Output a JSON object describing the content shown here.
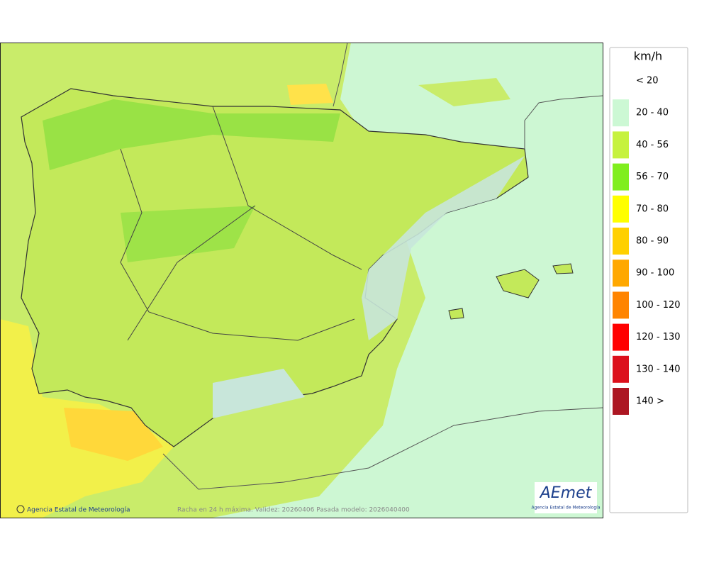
{
  "legend": {
    "title": "km/h",
    "items": [
      {
        "label": "< 20"
      },
      {
        "label": "20 - 40",
        "color": "#ccf8d4"
      },
      {
        "label": "40 - 56",
        "color": "#c6f23e"
      },
      {
        "label": "56 - 70",
        "color": "#80ee1e"
      },
      {
        "label": "70 - 80",
        "color": "#ffff00"
      },
      {
        "label": "80 - 90",
        "color": "#ffd000"
      },
      {
        "label": "90 - 100",
        "color": "#ffa800"
      },
      {
        "label": "100 - 120",
        "color": "#ff8400"
      },
      {
        "label": "120 - 130",
        "color": "#ff0000"
      },
      {
        "label": "130 - 140",
        "color": "#dc101c"
      },
      {
        "label": "140 >",
        "color": "#ac1622"
      }
    ]
  },
  "footer": {
    "credit": "Agencia Estatal de Meteorología",
    "caption": "Racha en 24 h máxima. Validez: 20260406 Pasada modelo: 2026040400"
  },
  "logo": {
    "text": "AEmet",
    "subtitle": "Agencia Estatal de Meteorología"
  }
}
